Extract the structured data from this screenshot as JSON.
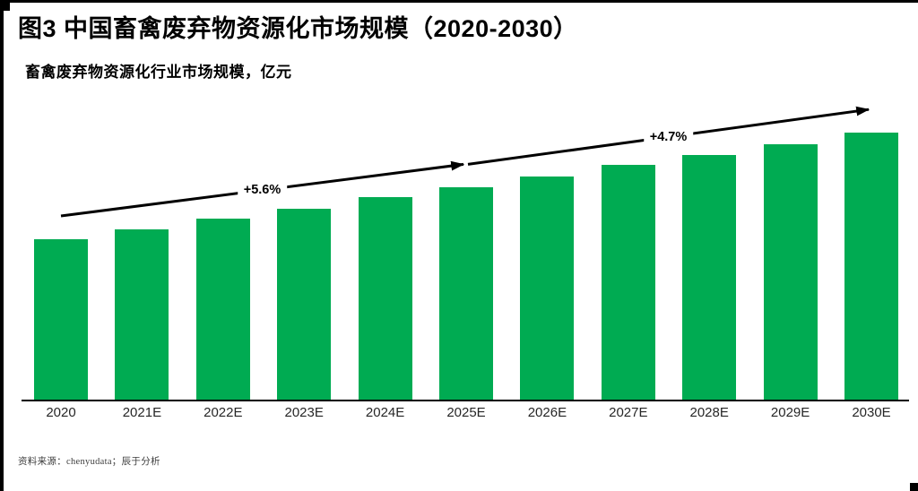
{
  "page": {
    "title": "图3 中国畜禽废弃物资源化市场规模（2020-2030）",
    "subtitle": "畜禽废弃物资源化行业市场规模，亿元",
    "source": "资料来源：chenyudata；辰于分析"
  },
  "colors": {
    "bar": "#00AB52",
    "arrow": "#000000",
    "axis": "#000000",
    "tick_label": "#262626"
  },
  "chart_data": {
    "type": "bar",
    "title": "中国畜禽废弃物资源化市场规模（2020-2030）",
    "ylabel": "畜禽废弃物资源化行业市场规模，亿元",
    "unit": "亿元",
    "categories": [
      "2020",
      "2021E",
      "2022E",
      "2023E",
      "2024E",
      "2025E",
      "2026E",
      "2027E",
      "2028E",
      "2029E",
      "2030E"
    ],
    "values": [
      100,
      106,
      113,
      119,
      126,
      132,
      139,
      146,
      152,
      159,
      166
    ],
    "values_note": "no y-axis or numeric data labels are shown in the figure; values are relative bar heights indexed to 2020 = 100",
    "value_labels_shown": false,
    "y_axis_shown": false,
    "grid": false,
    "annotations": [
      {
        "type": "cagr-arrow",
        "label": "+5.6%",
        "from_category": "2020",
        "to_category": "2025E"
      },
      {
        "type": "cagr-arrow",
        "label": "+4.7%",
        "from_category": "2025E",
        "to_category": "2030E"
      }
    ]
  }
}
